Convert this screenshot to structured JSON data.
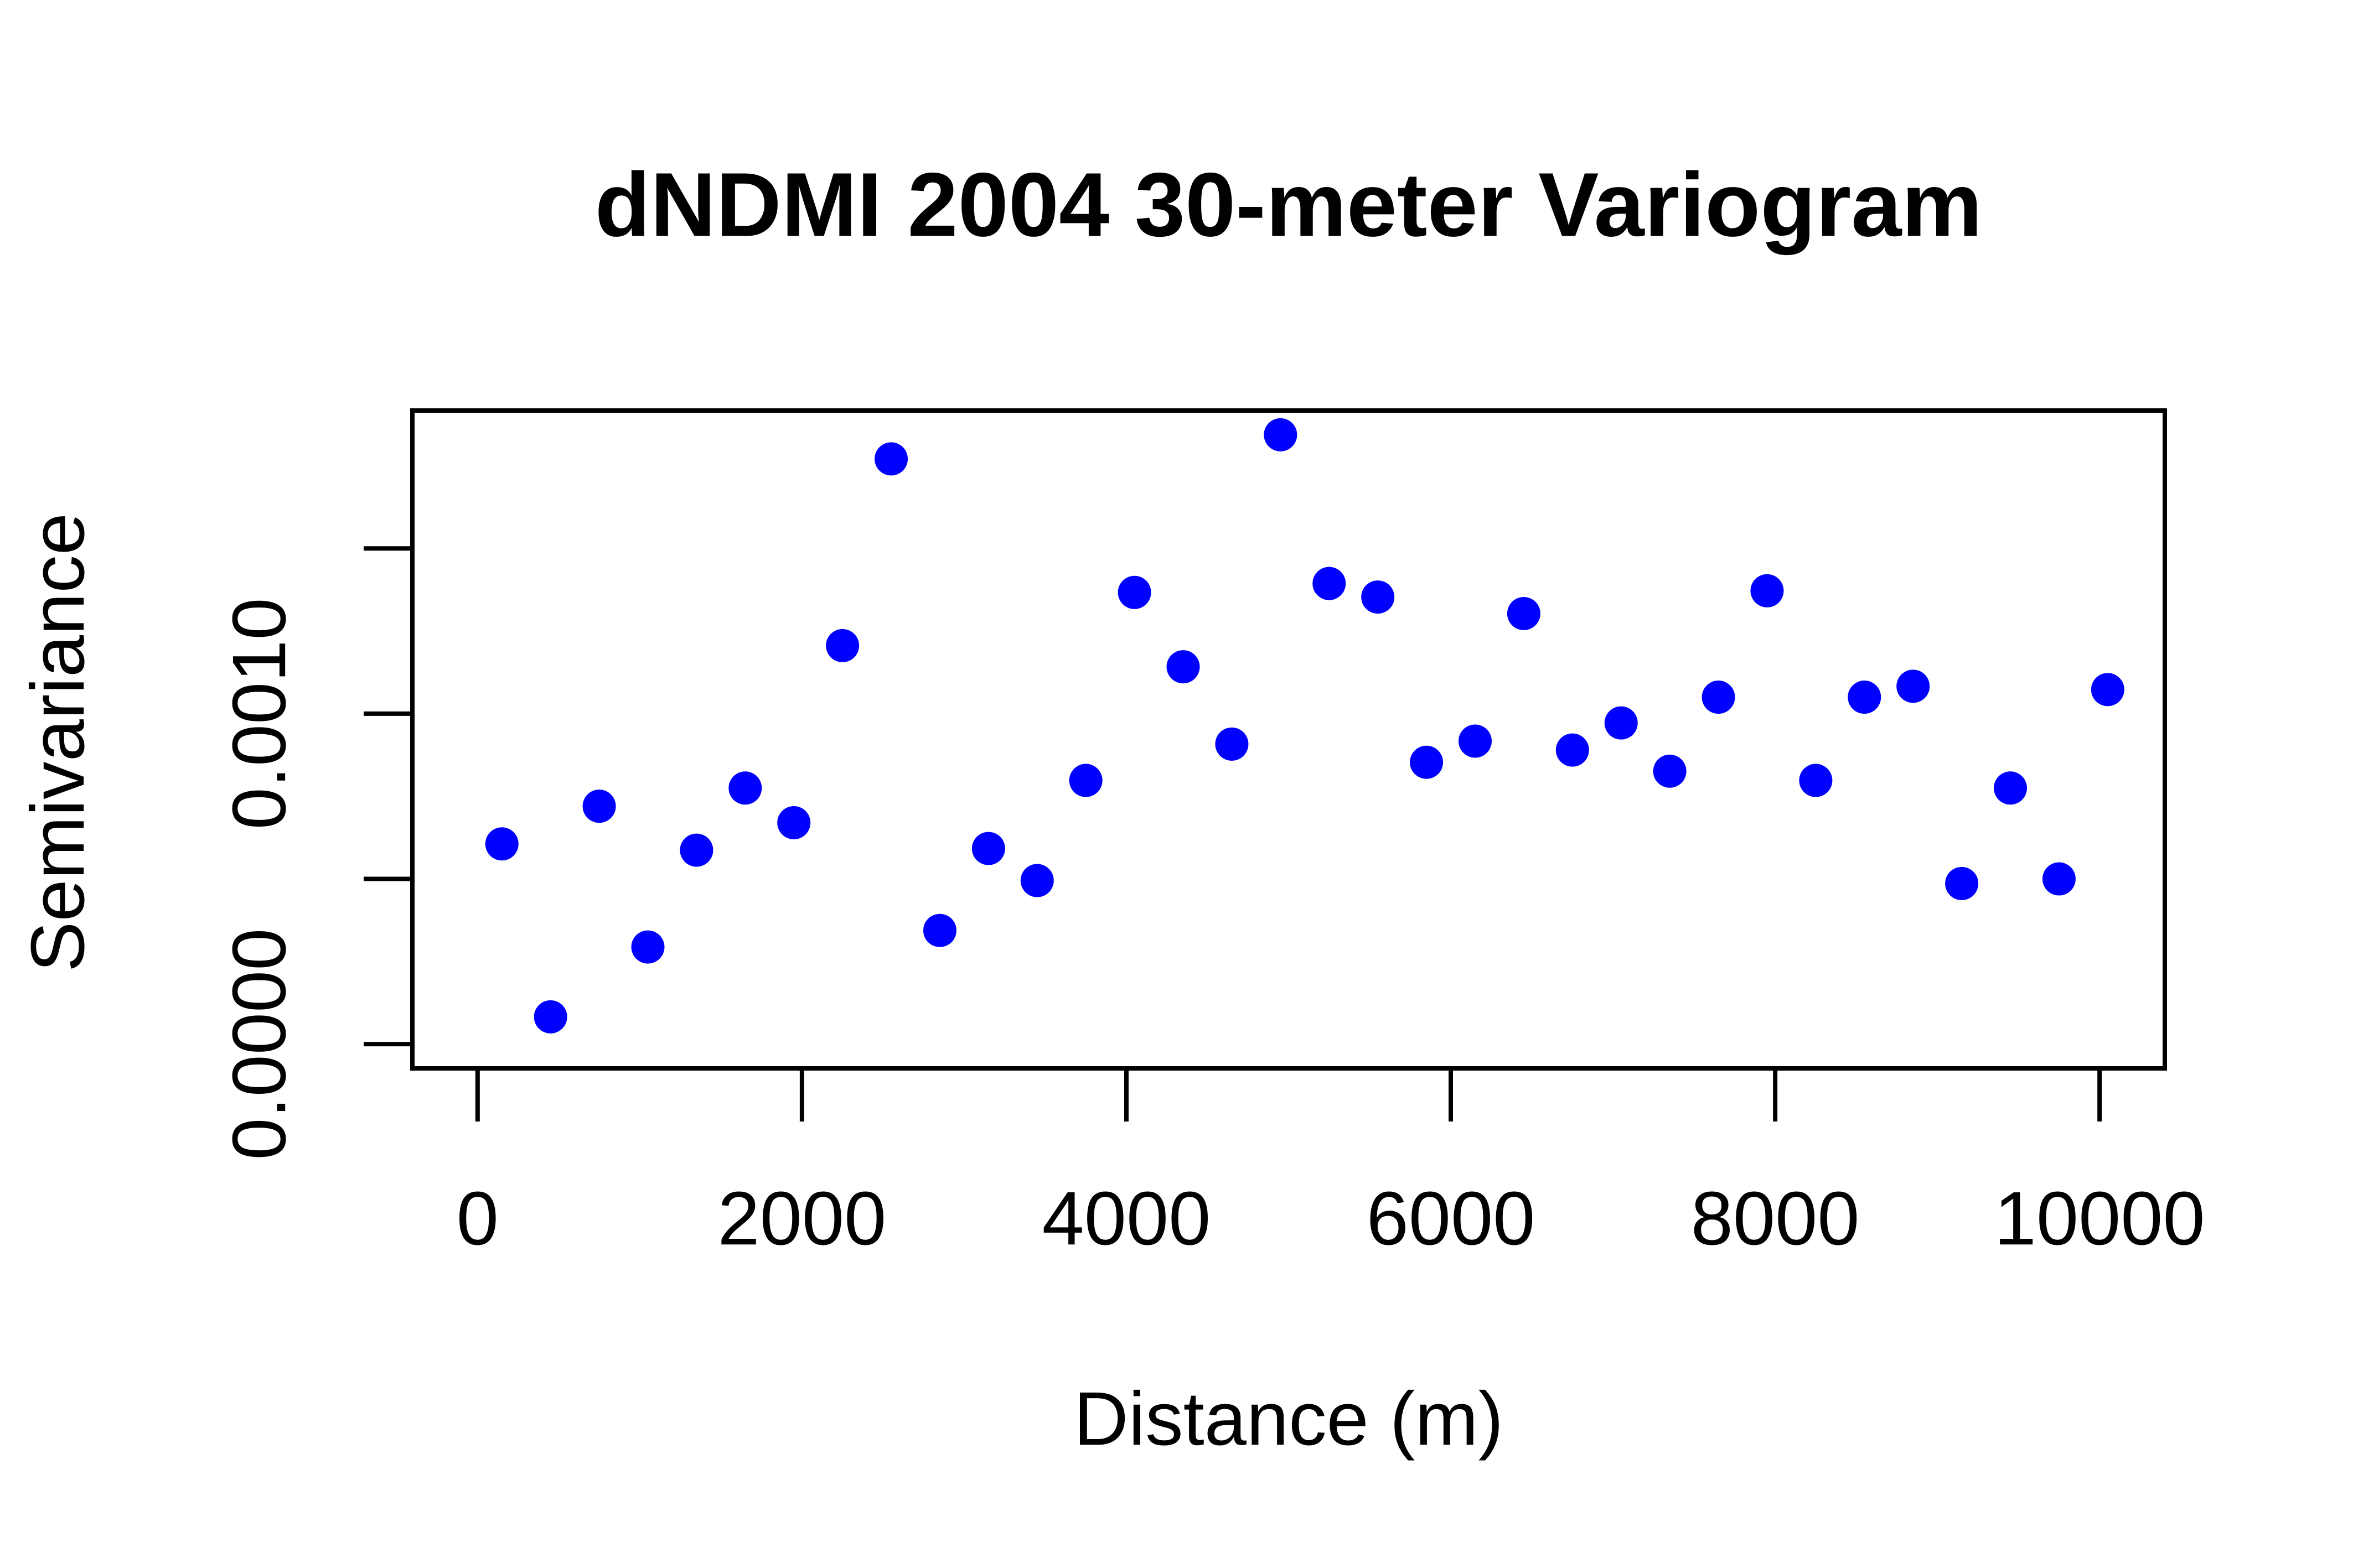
{
  "chart_data": {
    "type": "scatter",
    "title": "dNDMI 2004 30-meter Variogram",
    "x_label": "Distance (m)",
    "y_label": "Semivariance",
    "x": [
      150,
      450,
      750,
      1050,
      1350,
      1650,
      1950,
      2250,
      2550,
      2850,
      3150,
      3450,
      3750,
      4050,
      4350,
      4650,
      4950,
      5250,
      5550,
      5850,
      6150,
      6450,
      6750,
      7050,
      7350,
      7650,
      7950,
      8250,
      8550,
      8850,
      9150,
      9450,
      9750,
      10050
    ],
    "values": [
      0.000606,
      8.26e-05,
      0.00072,
      0.000294,
      0.000587,
      0.000775,
      0.00067,
      0.001206,
      0.001771,
      0.000344,
      0.000592,
      0.000495,
      0.000798,
      0.001367,
      0.001142,
      0.000908,
      0.001844,
      0.001394,
      0.001353,
      0.000853,
      0.000917,
      0.001303,
      0.00089,
      0.000972,
      0.000826,
      0.00105,
      0.001372,
      0.000798,
      0.00105,
      0.001083,
      0.000486,
      0.000775,
      0.0005,
      0.001073
    ],
    "color": "#0000ff",
    "xlim": [
      -402,
      10402
    ],
    "xticks": [
      0,
      2000,
      4000,
      6000,
      8000,
      10000
    ],
    "ylim": [
      -7.34e-05,
      0.0019174
    ],
    "yticks": [
      {
        "value": 0,
        "label": "0.0000"
      },
      {
        "value": 0.0005,
        "label": null
      },
      {
        "value": 0.001,
        "label": "0.0010"
      },
      {
        "value": 0.0015,
        "label": null
      }
    ],
    "grid": false
  }
}
